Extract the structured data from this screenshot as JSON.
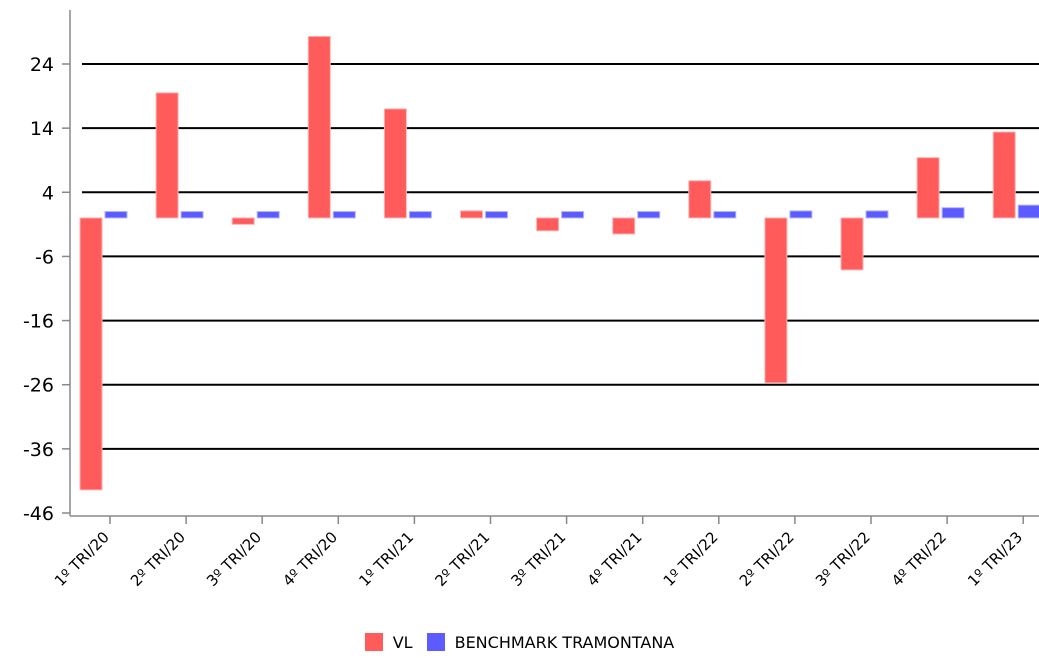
{
  "chart_data": {
    "type": "bar",
    "title": "",
    "xlabel": "",
    "ylabel": "",
    "ylim": [
      -46,
      30
    ],
    "yticks": [
      24,
      14,
      4,
      -6,
      -16,
      -26,
      -36,
      -46
    ],
    "grid": true,
    "legend_position": "bottom",
    "categories": [
      "1º TRI/20",
      "2º TRI/20",
      "3º TRI/20",
      "4º TRI/20",
      "1º TRI/21",
      "2º TRI/21",
      "3º TRI/21",
      "4º TRI/21",
      "1º TRI/22",
      "2º TRI/22",
      "3º TRI/22",
      "4º TRI/22",
      "1º TRI/23"
    ],
    "series": [
      {
        "name": "VL",
        "color": "#ff5b5b",
        "values": [
          -42.4,
          19.5,
          -1.0,
          28.3,
          17.0,
          1.1,
          -2.0,
          -2.5,
          5.8,
          -25.7,
          -8.1,
          9.4,
          13.4
        ]
      },
      {
        "name": "BENCHMARK TRAMONTANA",
        "color": "#5b5bff",
        "values": [
          1.0,
          1.0,
          1.0,
          1.0,
          1.0,
          1.0,
          1.0,
          1.0,
          1.0,
          1.1,
          1.1,
          1.6,
          2.0
        ]
      }
    ]
  }
}
